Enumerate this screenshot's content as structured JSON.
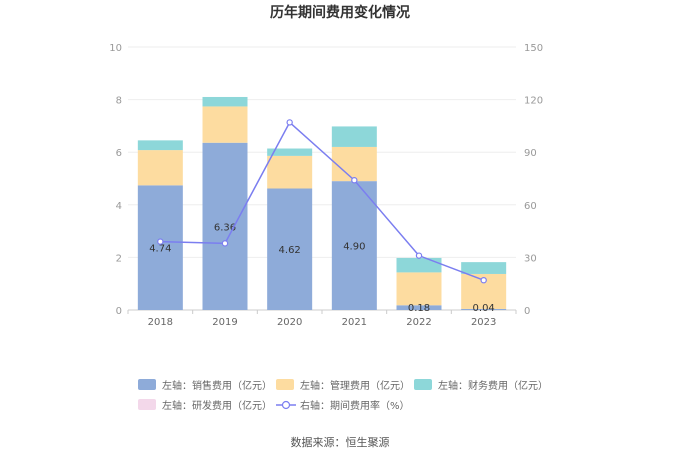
{
  "chart_data": {
    "type": "bar",
    "title": "历年期间费用变化情况",
    "categories": [
      "2018",
      "2019",
      "2020",
      "2021",
      "2022",
      "2023"
    ],
    "left_axis": {
      "ylim": [
        0,
        10
      ],
      "ticks": [
        "0",
        "2",
        "4",
        "6",
        "8",
        "10"
      ]
    },
    "right_axis": {
      "ylim": [
        0,
        150
      ],
      "ticks": [
        "0",
        "30",
        "60",
        "90",
        "120",
        "150"
      ]
    },
    "series": [
      {
        "name": "左轴：销售费用（亿元）",
        "type": "bar",
        "axis": "left",
        "color": "#8eabd9",
        "values": [
          4.74,
          6.36,
          4.62,
          4.9,
          0.18,
          0.04
        ],
        "labels": [
          "4.74",
          "6.36",
          "4.62",
          "4.90",
          "0.18",
          "0.04"
        ]
      },
      {
        "name": "左轴：管理费用（亿元）",
        "type": "bar",
        "axis": "left",
        "color": "#fddca0",
        "values": [
          1.34,
          1.38,
          1.24,
          1.3,
          1.25,
          1.33
        ]
      },
      {
        "name": "左轴：财务费用（亿元）",
        "type": "bar",
        "axis": "left",
        "color": "#8dd7d9",
        "values": [
          0.37,
          0.36,
          0.28,
          0.78,
          0.55,
          0.45
        ]
      },
      {
        "name": "左轴：研发费用（亿元）",
        "type": "bar",
        "axis": "left",
        "color": "#f3d8ea",
        "values": [
          0,
          0,
          0,
          0,
          0,
          0
        ]
      },
      {
        "name": "右轴：期间费用率（%）",
        "type": "line",
        "axis": "right",
        "color": "#7b7ef0",
        "values": [
          39,
          38,
          107,
          74,
          31,
          17
        ]
      }
    ]
  },
  "source": "数据来源：恒生聚源"
}
